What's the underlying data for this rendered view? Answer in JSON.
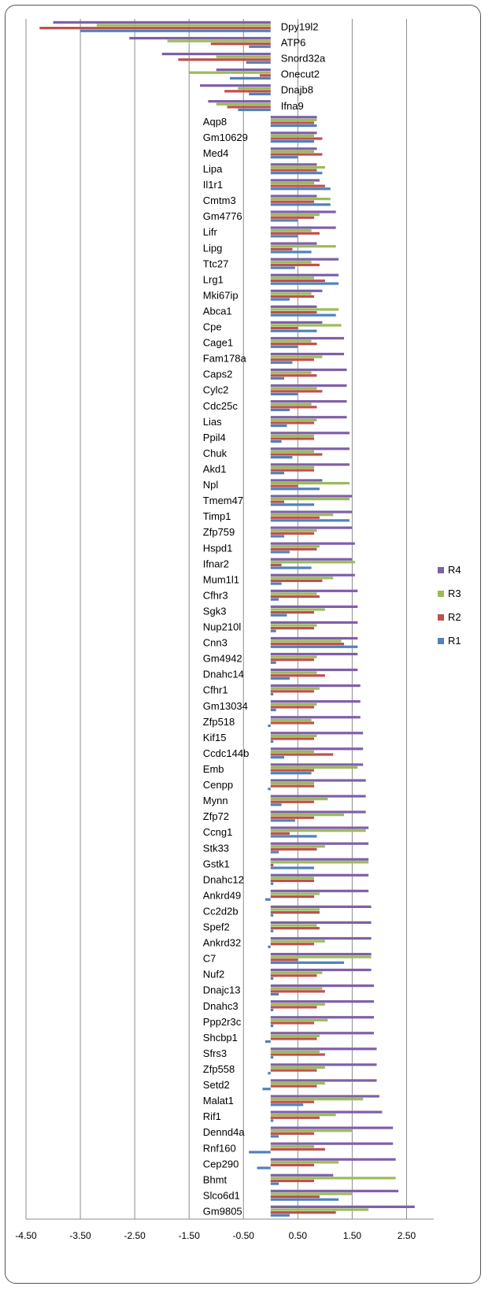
{
  "chart_data": {
    "type": "bar",
    "orientation": "horizontal",
    "title": "",
    "xlabel": "",
    "ylabel": "",
    "xlim": [
      -4.5,
      3.0
    ],
    "xticks": [
      -4.5,
      -3.5,
      -2.5,
      -1.5,
      -0.5,
      0.5,
      1.5,
      2.5
    ],
    "xtick_labels": [
      "-4.50",
      "-3.50",
      "-2.50",
      "-1.50",
      "-0.50",
      "0.50",
      "1.50",
      "2.50"
    ],
    "grid": true,
    "legend_position": "right",
    "categories": [
      "Dpy19l2",
      "ATP6",
      "Snord32a",
      "Onecut2",
      "Dnajb8",
      "Ifna9",
      "Aqp8",
      "Gm10629",
      "Med4",
      "Lipa",
      "Il1r1",
      "Cmtm3",
      "Gm4776",
      "Lifr",
      "Lipg",
      "Ttc27",
      "Lrg1",
      "Mki67ip",
      "Abca1",
      "Cpe",
      "Cage1",
      "Fam178a",
      "Caps2",
      "Cylc2",
      "Cdc25c",
      "Lias",
      "Ppil4",
      "Chuk",
      "Akd1",
      "Npl",
      "Tmem47",
      "Timp1",
      "Zfp759",
      "Hspd1",
      "Ifnar2",
      "Mum1l1",
      "Cfhr3",
      "Sgk3",
      "Nup210l",
      "Cnn3",
      "Gm4942",
      "Dnahc14",
      "Cfhr1",
      "Gm13034",
      "Zfp518",
      "Kif15",
      "Ccdc144b",
      "Emb",
      "Cenpp",
      "Mynn",
      "Zfp72",
      "Ccng1",
      "Stk33",
      "Gstk1",
      "Dnahc12",
      "Ankrd49",
      "Cc2d2b",
      "Spef2",
      "Ankrd32",
      "C7",
      "Nuf2",
      "Dnajc13",
      "Dnahc3",
      "Ppp2r3c",
      "Shcbp1",
      "Sfrs3",
      "Zfp558",
      "Setd2",
      "Malat1",
      "Rif1",
      "Dennd4a",
      "Rnf160",
      "Cep290",
      "Bhmt",
      "Slco6d1",
      "Gm9805"
    ],
    "series": [
      {
        "name": "R4",
        "color": "#7F5FA8",
        "values": [
          -4.0,
          -2.6,
          -2.0,
          -1.0,
          -1.3,
          -1.15,
          0.85,
          0.85,
          0.85,
          0.85,
          0.9,
          0.85,
          1.2,
          1.2,
          0.85,
          1.25,
          1.25,
          0.95,
          0.85,
          0.95,
          1.35,
          1.35,
          1.4,
          1.4,
          1.4,
          1.4,
          1.45,
          1.45,
          1.45,
          0.95,
          1.5,
          1.5,
          1.5,
          1.55,
          1.5,
          1.55,
          1.6,
          1.6,
          1.6,
          1.6,
          1.6,
          1.6,
          1.65,
          1.65,
          1.65,
          1.7,
          1.7,
          1.7,
          1.75,
          1.75,
          1.75,
          1.8,
          1.8,
          1.8,
          1.8,
          1.8,
          1.85,
          1.85,
          1.85,
          1.85,
          1.85,
          1.9,
          1.9,
          1.9,
          1.9,
          1.95,
          1.95,
          1.95,
          2.0,
          2.05,
          2.25,
          2.25,
          2.3,
          1.15,
          2.35,
          2.65
        ]
      },
      {
        "name": "R3",
        "color": "#9BBB59",
        "values": [
          -3.2,
          -1.9,
          -1.0,
          -1.5,
          -0.6,
          -1.0,
          0.85,
          0.8,
          0.8,
          1.0,
          0.8,
          1.1,
          0.9,
          0.75,
          1.2,
          0.75,
          0.8,
          0.75,
          1.25,
          1.3,
          0.75,
          0.95,
          0.75,
          0.85,
          0.75,
          0.85,
          0.8,
          0.8,
          0.8,
          1.45,
          1.45,
          1.15,
          0.85,
          0.9,
          1.55,
          1.15,
          0.85,
          1.0,
          0.85,
          1.3,
          0.85,
          0.85,
          0.9,
          0.85,
          0.75,
          0.85,
          0.8,
          1.6,
          0.8,
          1.05,
          1.35,
          1.75,
          1.0,
          1.8,
          0.8,
          0.9,
          0.9,
          0.85,
          1.0,
          1.85,
          0.95,
          0.95,
          1.0,
          1.05,
          0.9,
          0.9,
          1.0,
          1.0,
          1.7,
          1.2,
          1.5,
          0.8,
          1.25,
          2.3,
          1.5,
          1.8
        ]
      },
      {
        "name": "R2",
        "color": "#C0504D",
        "values": [
          -4.25,
          -1.1,
          -1.7,
          -0.2,
          -0.85,
          -0.8,
          0.8,
          0.95,
          0.95,
          0.85,
          1.0,
          0.8,
          0.8,
          0.9,
          0.4,
          0.9,
          1.0,
          0.8,
          0.85,
          0.5,
          0.85,
          0.8,
          0.85,
          0.95,
          0.85,
          0.8,
          0.8,
          0.95,
          0.8,
          0.5,
          0.25,
          0.9,
          0.8,
          0.85,
          0.2,
          0.95,
          0.9,
          0.8,
          0.8,
          1.35,
          0.8,
          1.0,
          0.8,
          0.8,
          0.8,
          0.8,
          1.15,
          0.8,
          0.8,
          0.8,
          0.8,
          0.35,
          0.85,
          0.05,
          0.8,
          0.8,
          0.9,
          0.9,
          0.8,
          0.5,
          0.85,
          1.0,
          0.85,
          0.8,
          0.85,
          1.0,
          0.85,
          0.85,
          0.8,
          0.9,
          0.8,
          1.0,
          0.8,
          0.8,
          0.9,
          1.2
        ]
      },
      {
        "name": "R1",
        "color": "#4F81BD",
        "values": [
          -3.5,
          -0.4,
          -0.45,
          -0.75,
          -0.4,
          -0.6,
          0.85,
          0.8,
          0.5,
          0.95,
          1.1,
          1.1,
          0.5,
          0.5,
          0.75,
          0.45,
          1.25,
          0.35,
          1.2,
          0.85,
          0.5,
          0.4,
          0.25,
          0.5,
          0.35,
          0.3,
          0.2,
          0.4,
          0.25,
          0.9,
          0.8,
          1.45,
          0.25,
          0.35,
          0.75,
          0.2,
          0.15,
          0.3,
          0.1,
          1.6,
          0.1,
          0.35,
          0.05,
          0.1,
          -0.05,
          0.05,
          0.25,
          0.75,
          -0.05,
          0.2,
          0.45,
          0.85,
          0.15,
          0.8,
          0.05,
          -0.1,
          0.05,
          0.05,
          -0.05,
          1.35,
          0.05,
          0.15,
          0.05,
          0.05,
          -0.1,
          0.05,
          -0.05,
          -0.15,
          0.6,
          0.05,
          0.15,
          -0.4,
          -0.25,
          0.15,
          1.25,
          0.35
        ]
      }
    ]
  }
}
